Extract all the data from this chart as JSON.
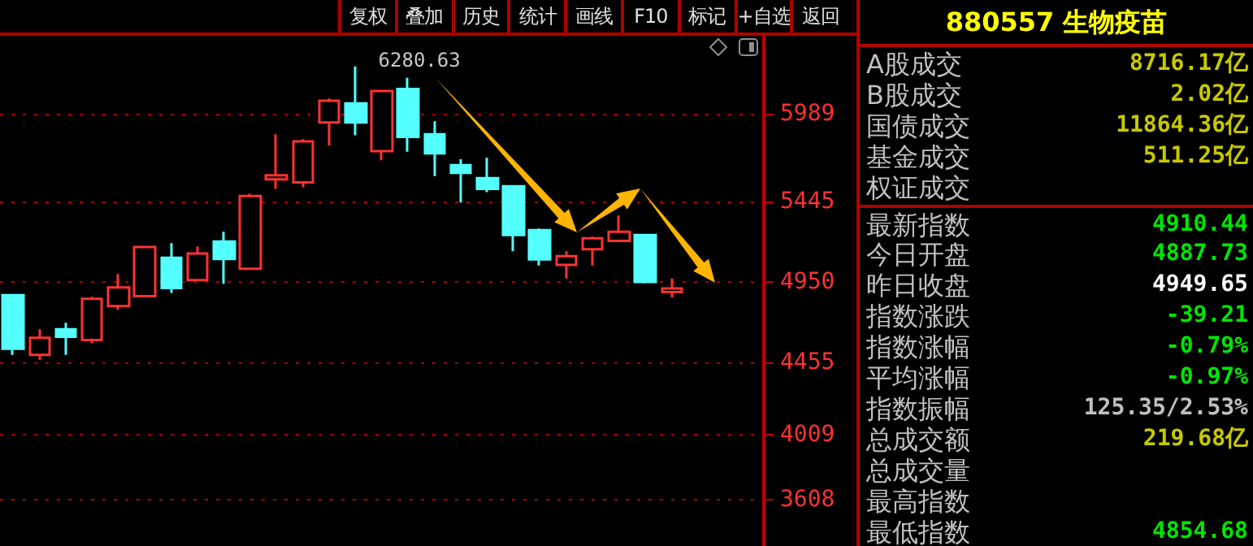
{
  "chart_data": [
    {
      "type": "candlestick",
      "annotations": [
        "复权",
        "叠加",
        "历史",
        "统计",
        "画线",
        "F10",
        "标记",
        "+自选",
        "返回",
        "6280.63"
      ],
      "categories": [
        null,
        null,
        null,
        null,
        null,
        null,
        null,
        null,
        null,
        null,
        null,
        null,
        null,
        null,
        null,
        null,
        null,
        null,
        null,
        null,
        null,
        null,
        null,
        null,
        null,
        null,
        null,
        null,
        null
      ],
      "ohlc": [
        [
          4869,
          4869,
          4500,
          4538
        ],
        [
          4500,
          4658,
          4470,
          4605
        ],
        [
          4658,
          4698,
          4500,
          4611
        ],
        [
          4591,
          4859,
          4571,
          4846
        ],
        [
          4801,
          4999,
          4778,
          4916
        ],
        [
          4862,
          5166,
          4862,
          5166
        ],
        [
          5099,
          5190,
          4882,
          4912
        ],
        [
          4962,
          5169,
          4962,
          5126
        ],
        [
          5200,
          5260,
          4939,
          5092
        ],
        [
          5032,
          5494,
          5032,
          5480
        ],
        [
          5584,
          5862,
          5524,
          5608
        ],
        [
          5564,
          5832,
          5534,
          5818
        ],
        [
          5935,
          6082,
          5791,
          6069
        ],
        [
          6052,
          6280.63,
          5855,
          5935
        ],
        [
          5758,
          6129,
          5701,
          6129
        ],
        [
          6142,
          6210,
          5754,
          5845
        ],
        [
          5862,
          5942,
          5604,
          5744
        ],
        [
          5671,
          5708,
          5440,
          5624
        ],
        [
          5591,
          5718,
          5504,
          5524
        ],
        [
          5541,
          5541,
          5139,
          5240
        ],
        [
          5270,
          5280,
          5052,
          5089
        ],
        [
          5056,
          5139,
          4972,
          5109
        ],
        [
          5152,
          5230,
          5052,
          5220
        ],
        [
          5203,
          5360,
          5203,
          5260
        ],
        [
          5240,
          5240,
          4942,
          4950
        ],
        [
          4888,
          4972,
          4855,
          4910
        ],
        null,
        null,
        null
      ],
      "colors": [
        "#54ffff",
        "#ff3232",
        "#54ffff",
        "#ff3232",
        "#ff3232",
        "#ff3232",
        "#54ffff",
        "#ff3232",
        "#54ffff",
        "#ff3232",
        "#ff3232",
        "#ff3232",
        "#ff3232",
        "#54ffff",
        "#ff3232",
        "#54ffff",
        "#54ffff",
        "#54ffff",
        "#54ffff",
        "#54ffff",
        "#54ffff",
        "#ff3232",
        "#ff3232",
        "#ff3232",
        "#54ffff",
        "#ff3232",
        null,
        null,
        null
      ],
      "ylim": [
        3320,
        6470
      ],
      "yticks": [
        3608,
        4009,
        4455,
        4950,
        5445,
        5989
      ],
      "grid": "y",
      "tick_labels": "y"
    },
    {
      "type": "other",
      "title": "880557 生物疫苗",
      "categories": [
        "A股成交",
        "B股成交",
        "国债成交",
        "基金成交",
        "权证成交",
        "最新指数",
        "今日开盘",
        "昨日收盘",
        "指数涨跌",
        "指数涨幅",
        "平均涨幅",
        "指数振幅",
        "总成交额",
        "总成交量",
        "最高指数",
        "最低指数"
      ],
      "value_labels": [
        "8716.17亿",
        "2.02亿",
        "11864.36亿",
        "511.25亿",
        null,
        "4910.44",
        "4887.73",
        "4949.65",
        "-39.21",
        "-0.79%",
        "-0.97%",
        "125.35/2.53%",
        "219.68亿",
        null,
        null,
        "4854.68"
      ],
      "colors": [
        "#c8c800",
        "#c8c800",
        "#c8c800",
        "#c8c800",
        null,
        "#00e600",
        "#00e600",
        "#ffffff",
        "#00e600",
        "#00e600",
        "#00e600",
        "#c0c0c0",
        "#c8c800",
        null,
        null,
        "#00e600"
      ]
    }
  ]
}
